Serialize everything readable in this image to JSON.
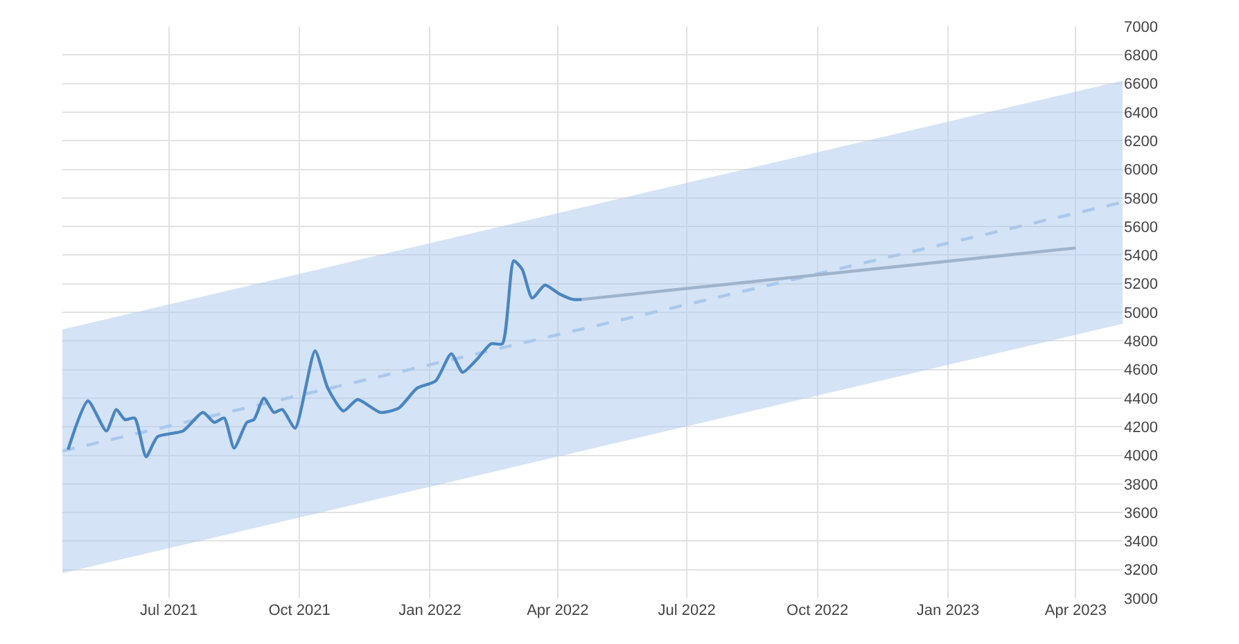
{
  "chart_data": {
    "type": "line",
    "series": [
      {
        "color": "#a9c8ec",
        "line_style": "dashed",
        "x": [
          "2021-04-17",
          "2023-05-04"
        ],
        "values": [
          4030,
          5770
        ],
        "lower": [
          3175,
          4920
        ],
        "upper": [
          4880,
          6620
        ]
      },
      {
        "color": "#4a86c0",
        "x": [
          "2021-04-21",
          "2021-05-05",
          "2021-05-18",
          "2021-05-25",
          "2021-05-31",
          "2021-06-07",
          "2021-06-15",
          "2021-06-23",
          "2021-07-11",
          "2021-07-25",
          "2021-08-02",
          "2021-08-09",
          "2021-08-16",
          "2021-08-25",
          "2021-08-30",
          "2021-09-06",
          "2021-09-13",
          "2021-09-19",
          "2021-09-28",
          "2021-10-12",
          "2021-10-21",
          "2021-11-01",
          "2021-11-11",
          "2021-11-27",
          "2021-12-10",
          "2021-12-23",
          "2022-01-05",
          "2022-01-16",
          "2022-01-24",
          "2022-02-03",
          "2022-02-13",
          "2022-02-21",
          "2022-03-01",
          "2022-03-07",
          "2022-03-14",
          "2022-03-23",
          "2022-04-02",
          "2022-04-12",
          "2022-04-18"
        ],
        "values": [
          4040,
          4380,
          4170,
          4320,
          4250,
          4260,
          3990,
          4130,
          4170,
          4300,
          4230,
          4260,
          4050,
          4230,
          4250,
          4400,
          4300,
          4320,
          4190,
          4730,
          4470,
          4310,
          4390,
          4300,
          4330,
          4470,
          4520,
          4710,
          4580,
          4670,
          4780,
          4780,
          5360,
          5300,
          5100,
          5190,
          5130,
          5090,
          5090
        ]
      },
      {
        "color": "#9fb3cb",
        "x": [
          "2022-04-18",
          "2023-04-01"
        ],
        "values": [
          5090,
          5450
        ]
      }
    ],
    "xlim": [
      "2021-04-17",
      "2023-05-04"
    ],
    "xticks": [
      {
        "value": "2021-07-01",
        "label": "Jul 2021"
      },
      {
        "value": "2021-10-01",
        "label": "Oct 2021"
      },
      {
        "value": "2022-01-01",
        "label": "Jan 2022"
      },
      {
        "value": "2022-04-01",
        "label": "Apr 2022"
      },
      {
        "value": "2022-07-01",
        "label": "Jul 2022"
      },
      {
        "value": "2022-10-01",
        "label": "Oct 2022"
      },
      {
        "value": "2023-01-01",
        "label": "Jan 2023"
      },
      {
        "value": "2023-04-01",
        "label": "Apr 2023"
      }
    ],
    "ylim": [
      3000,
      7000
    ],
    "yticks": [
      3000,
      3200,
      3400,
      3600,
      3800,
      4000,
      4200,
      4400,
      4600,
      4800,
      5000,
      5200,
      5400,
      5600,
      5800,
      6000,
      6200,
      6400,
      6600,
      6800,
      7000
    ],
    "grid": true
  }
}
